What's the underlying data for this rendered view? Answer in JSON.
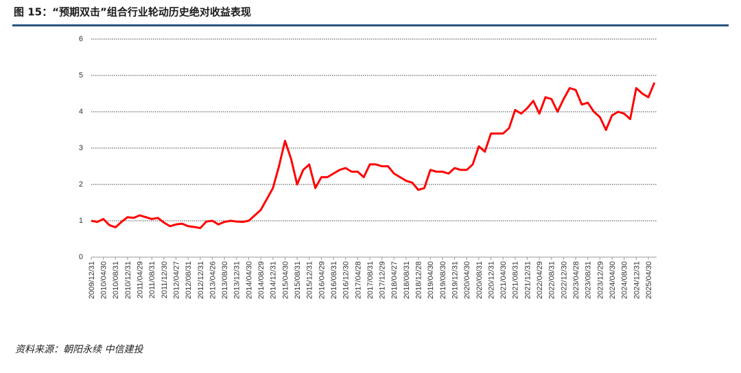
{
  "chart_data": {
    "type": "line",
    "title": "图 15：“预期双击”组合行业轮动历史绝对收益表现",
    "source": "资料来源：朝阳永续  中信建投",
    "categories": [
      "2009/12/31",
      null,
      "2010/04/30",
      null,
      "2010/08/31",
      null,
      "2010/12/31",
      null,
      "2011/04/29",
      null,
      "2011/08/31",
      null,
      "2011/12/30",
      null,
      "2012/04/27",
      null,
      "2012/08/31",
      null,
      "2012/12/31",
      null,
      "2013/04/26",
      null,
      "2013/08/30",
      null,
      "2013/12/31",
      null,
      "2014/04/30",
      null,
      "2014/08/29",
      null,
      "2014/12/31",
      null,
      "2015/04/30",
      null,
      "2015/08/31",
      null,
      "2015/12/31",
      null,
      "2016/04/29",
      null,
      "2016/08/31",
      null,
      "2016/12/30",
      null,
      "2017/04/28",
      null,
      "2017/08/31",
      null,
      "2017/12/29",
      null,
      "2018/04/27",
      null,
      "2018/08/31",
      null,
      "2018/12/28",
      null,
      "2019/04/30",
      null,
      "2019/08/30",
      null,
      "2019/12/31",
      null,
      "2020/04/30",
      null,
      "2020/08/31",
      null,
      "2020/12/31",
      null,
      "2021/04/30",
      null,
      "2021/08/31",
      null,
      "2021/12/31",
      null,
      "2022/04/29",
      null,
      "2022/08/31",
      null,
      "2022/12/30",
      null,
      "2023/04/28",
      null,
      "2023/08/31",
      null,
      "2023/12/29",
      null,
      "2024/04/30",
      null,
      "2024/08/30",
      null,
      "2024/12/31",
      null,
      "2025/04/30",
      null
    ],
    "values": [
      1.0,
      0.97,
      1.05,
      0.88,
      0.82,
      0.97,
      1.1,
      1.08,
      1.15,
      1.1,
      1.05,
      1.08,
      0.95,
      0.85,
      0.9,
      0.92,
      0.85,
      0.83,
      0.8,
      0.98,
      1.0,
      0.9,
      0.97,
      1.0,
      0.98,
      0.97,
      1.0,
      1.15,
      1.3,
      1.6,
      1.9,
      2.5,
      3.2,
      2.7,
      2.0,
      2.4,
      2.55,
      1.9,
      2.2,
      2.2,
      2.3,
      2.4,
      2.45,
      2.35,
      2.35,
      2.2,
      2.55,
      2.55,
      2.5,
      2.5,
      2.3,
      2.2,
      2.1,
      2.05,
      1.85,
      1.9,
      2.4,
      2.35,
      2.35,
      2.3,
      2.45,
      2.4,
      2.4,
      2.55,
      3.05,
      2.9,
      3.4,
      3.4,
      3.4,
      3.55,
      4.05,
      3.95,
      4.1,
      4.3,
      3.95,
      4.4,
      4.35,
      4.0,
      4.35,
      4.65,
      4.6,
      4.2,
      4.25,
      4.0,
      3.85,
      3.5,
      3.9,
      4.0,
      3.95,
      3.8,
      4.65,
      4.5,
      4.4,
      4.8
    ],
    "color": "#ff0000",
    "ylim": [
      0,
      6
    ],
    "yticks": [
      0,
      1,
      2,
      3,
      4,
      5,
      6
    ],
    "grid": true
  }
}
